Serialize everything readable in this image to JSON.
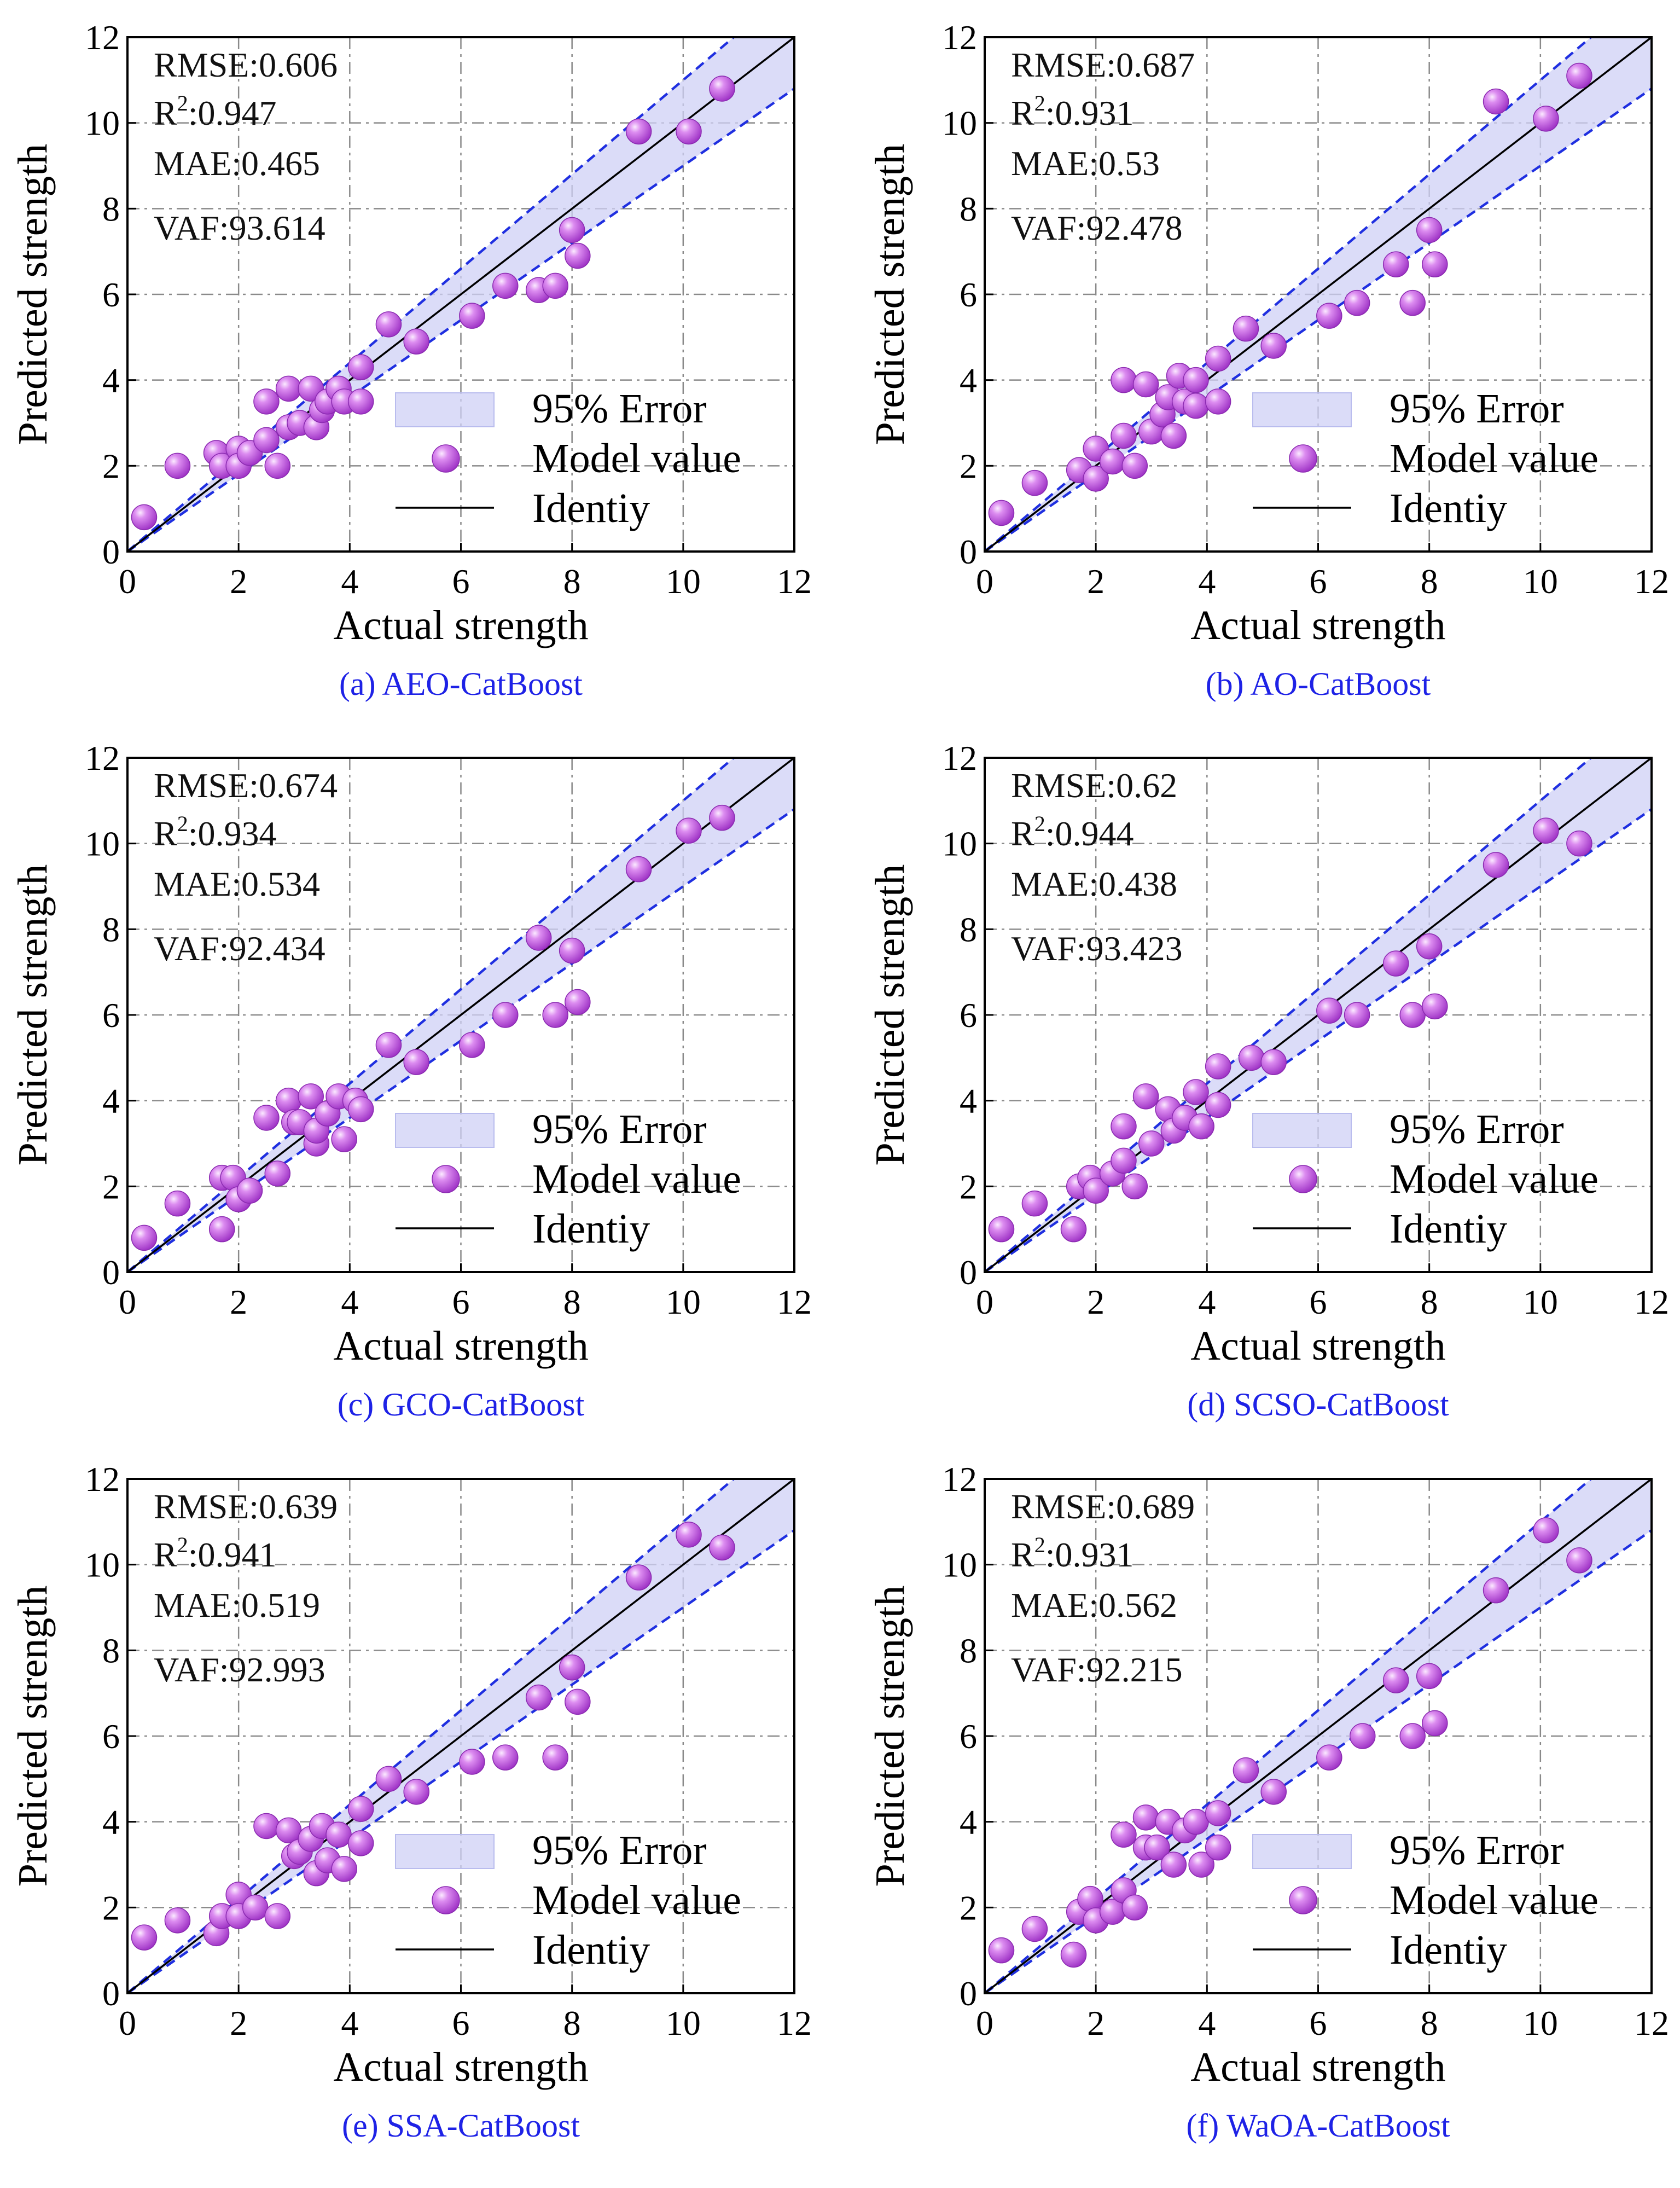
{
  "legend": {
    "error_band": "95% Error",
    "model": "Model value",
    "identity": "Identiy"
  },
  "colors": {
    "band": "#cfd0f5",
    "band_line": "#1f2fe0",
    "identity": "#000000",
    "point": "#b33ad6",
    "point_highlight": "#f2d6fb",
    "caption": "#1e22e6"
  },
  "chart_data": [
    {
      "type": "scatter",
      "caption": "(a) AEO-CatBoost",
      "xlabel": "Actual strength",
      "ylabel": "Predicted strength",
      "xlim": [
        0,
        12
      ],
      "ylim": [
        0,
        12
      ],
      "xticks": [
        "0",
        "2",
        "4",
        "6",
        "8",
        "10",
        "12"
      ],
      "yticks": [
        "0",
        "2",
        "4",
        "6",
        "8",
        "10",
        "12"
      ],
      "metrics": {
        "rmse": "RMSE:0.606",
        "r2_label": "R",
        "r2_exp": "2",
        "r2_value": ":0.947",
        "mae": "MAE:0.465",
        "vaf": "VAF:93.614"
      },
      "band_slopes": [
        0.9,
        1.1
      ],
      "points": [
        [
          0.3,
          0.8
        ],
        [
          0.9,
          2.0
        ],
        [
          1.6,
          2.3
        ],
        [
          1.7,
          2.0
        ],
        [
          2.0,
          2.4
        ],
        [
          2.0,
          2.0
        ],
        [
          2.2,
          2.3
        ],
        [
          2.5,
          2.6
        ],
        [
          2.5,
          3.5
        ],
        [
          2.7,
          2.0
        ],
        [
          2.9,
          3.8
        ],
        [
          2.9,
          2.9
        ],
        [
          3.1,
          3.0
        ],
        [
          3.3,
          3.8
        ],
        [
          3.4,
          2.9
        ],
        [
          3.5,
          3.3
        ],
        [
          3.6,
          3.5
        ],
        [
          3.8,
          3.8
        ],
        [
          3.9,
          3.5
        ],
        [
          4.2,
          4.3
        ],
        [
          4.2,
          3.5
        ],
        [
          4.7,
          5.3
        ],
        [
          5.2,
          4.9
        ],
        [
          6.2,
          5.5
        ],
        [
          6.8,
          6.2
        ],
        [
          7.4,
          6.1
        ],
        [
          7.7,
          6.2
        ],
        [
          8.0,
          7.5
        ],
        [
          8.1,
          6.9
        ],
        [
          9.2,
          9.8
        ],
        [
          10.1,
          9.8
        ],
        [
          10.7,
          10.8
        ]
      ]
    },
    {
      "type": "scatter",
      "caption": "(b) AO-CatBoost",
      "xlabel": "Actual strength",
      "ylabel": "Predicted strength",
      "xlim": [
        0,
        12
      ],
      "ylim": [
        0,
        12
      ],
      "xticks": [
        "0",
        "2",
        "4",
        "6",
        "8",
        "10",
        "12"
      ],
      "yticks": [
        "0",
        "2",
        "4",
        "6",
        "8",
        "10",
        "12"
      ],
      "metrics": {
        "rmse": "RMSE:0.687",
        "r2_label": "R",
        "r2_exp": "2",
        "r2_value": ":0.931",
        "mae": "MAE:0.53",
        "vaf": "VAF:92.478"
      },
      "band_slopes": [
        0.9,
        1.1
      ],
      "points": [
        [
          0.3,
          0.9
        ],
        [
          0.9,
          1.6
        ],
        [
          1.7,
          1.9
        ],
        [
          2.0,
          2.4
        ],
        [
          2.0,
          1.7
        ],
        [
          2.3,
          2.1
        ],
        [
          2.5,
          4.0
        ],
        [
          2.5,
          2.7
        ],
        [
          2.7,
          2.0
        ],
        [
          2.9,
          3.9
        ],
        [
          3.0,
          2.8
        ],
        [
          3.2,
          3.2
        ],
        [
          3.3,
          3.6
        ],
        [
          3.4,
          2.7
        ],
        [
          3.5,
          4.1
        ],
        [
          3.6,
          3.5
        ],
        [
          3.8,
          4.0
        ],
        [
          3.8,
          3.4
        ],
        [
          4.2,
          4.5
        ],
        [
          4.2,
          3.5
        ],
        [
          4.7,
          5.2
        ],
        [
          5.2,
          4.8
        ],
        [
          6.2,
          5.5
        ],
        [
          6.7,
          5.8
        ],
        [
          7.4,
          6.7
        ],
        [
          7.7,
          5.8
        ],
        [
          8.0,
          7.5
        ],
        [
          8.1,
          6.7
        ],
        [
          9.2,
          10.5
        ],
        [
          10.1,
          10.1
        ],
        [
          10.7,
          11.1
        ]
      ]
    },
    {
      "type": "scatter",
      "caption": "(c) GCO-CatBoost",
      "xlabel": "Actual strength",
      "ylabel": "Predicted strength",
      "xlim": [
        0,
        12
      ],
      "ylim": [
        0,
        12
      ],
      "xticks": [
        "0",
        "2",
        "4",
        "6",
        "8",
        "10",
        "12"
      ],
      "yticks": [
        "0",
        "2",
        "4",
        "6",
        "8",
        "10",
        "12"
      ],
      "metrics": {
        "rmse": "RMSE:0.674",
        "r2_label": "R",
        "r2_exp": "2",
        "r2_value": ":0.934",
        "mae": "MAE:0.534",
        "vaf": "VAF:92.434"
      },
      "band_slopes": [
        0.9,
        1.1
      ],
      "points": [
        [
          0.3,
          0.8
        ],
        [
          0.9,
          1.6
        ],
        [
          1.7,
          1.0
        ],
        [
          1.7,
          2.2
        ],
        [
          1.9,
          2.2
        ],
        [
          2.0,
          1.7
        ],
        [
          2.2,
          1.9
        ],
        [
          2.5,
          3.6
        ],
        [
          2.7,
          2.3
        ],
        [
          2.9,
          4.0
        ],
        [
          3.0,
          3.5
        ],
        [
          3.1,
          3.5
        ],
        [
          3.3,
          4.1
        ],
        [
          3.4,
          3.0
        ],
        [
          3.4,
          3.3
        ],
        [
          3.6,
          3.7
        ],
        [
          3.8,
          4.1
        ],
        [
          3.9,
          3.1
        ],
        [
          4.1,
          4.0
        ],
        [
          4.2,
          3.8
        ],
        [
          4.7,
          5.3
        ],
        [
          5.2,
          4.9
        ],
        [
          6.2,
          5.3
        ],
        [
          6.8,
          6.0
        ],
        [
          7.4,
          7.8
        ],
        [
          7.7,
          6.0
        ],
        [
          8.0,
          7.5
        ],
        [
          8.1,
          6.3
        ],
        [
          9.2,
          9.4
        ],
        [
          10.1,
          10.3
        ],
        [
          10.7,
          10.6
        ]
      ]
    },
    {
      "type": "scatter",
      "caption": "(d) SCSO-CatBoost",
      "xlabel": "Actual strength",
      "ylabel": "Predicted strength",
      "xlim": [
        0,
        12
      ],
      "ylim": [
        0,
        12
      ],
      "xticks": [
        "0",
        "2",
        "4",
        "6",
        "8",
        "10",
        "12"
      ],
      "yticks": [
        "0",
        "2",
        "4",
        "6",
        "8",
        "10",
        "12"
      ],
      "metrics": {
        "rmse": "RMSE:0.62",
        "r2_label": "R",
        "r2_exp": "2",
        "r2_value": ":0.944",
        "mae": "MAE:0.438",
        "vaf": "VAF:93.423"
      },
      "band_slopes": [
        0.9,
        1.1
      ],
      "points": [
        [
          0.3,
          1.0
        ],
        [
          0.9,
          1.6
        ],
        [
          1.6,
          1.0
        ],
        [
          1.7,
          2.0
        ],
        [
          1.9,
          2.2
        ],
        [
          2.0,
          1.9
        ],
        [
          2.3,
          2.3
        ],
        [
          2.5,
          3.4
        ],
        [
          2.5,
          2.6
        ],
        [
          2.7,
          2.0
        ],
        [
          2.9,
          4.1
        ],
        [
          3.0,
          3.0
        ],
        [
          3.3,
          3.8
        ],
        [
          3.4,
          3.3
        ],
        [
          3.6,
          3.6
        ],
        [
          3.8,
          4.2
        ],
        [
          3.9,
          3.4
        ],
        [
          4.2,
          4.8
        ],
        [
          4.2,
          3.9
        ],
        [
          4.8,
          5.0
        ],
        [
          5.2,
          4.9
        ],
        [
          6.2,
          6.1
        ],
        [
          6.7,
          6.0
        ],
        [
          7.4,
          7.2
        ],
        [
          7.7,
          6.0
        ],
        [
          8.0,
          7.6
        ],
        [
          8.1,
          6.2
        ],
        [
          9.2,
          9.5
        ],
        [
          10.1,
          10.3
        ],
        [
          10.7,
          10.0
        ]
      ]
    },
    {
      "type": "scatter",
      "caption": "(e) SSA-CatBoost",
      "xlabel": "Actual strength",
      "ylabel": "Predicted strength",
      "xlim": [
        0,
        12
      ],
      "ylim": [
        0,
        12
      ],
      "xticks": [
        "0",
        "2",
        "4",
        "6",
        "8",
        "10",
        "12"
      ],
      "yticks": [
        "0",
        "2",
        "4",
        "6",
        "8",
        "10",
        "12"
      ],
      "metrics": {
        "rmse": "RMSE:0.639",
        "r2_label": "R",
        "r2_exp": "2",
        "r2_value": ":0.941",
        "mae": "MAE:0.519",
        "vaf": "VAF:92.993"
      },
      "band_slopes": [
        0.9,
        1.1
      ],
      "points": [
        [
          0.3,
          1.3
        ],
        [
          0.9,
          1.7
        ],
        [
          1.6,
          1.4
        ],
        [
          1.7,
          1.8
        ],
        [
          2.0,
          2.3
        ],
        [
          2.0,
          1.8
        ],
        [
          2.3,
          2.0
        ],
        [
          2.5,
          3.9
        ],
        [
          2.7,
          1.8
        ],
        [
          2.9,
          3.8
        ],
        [
          3.0,
          3.2
        ],
        [
          3.1,
          3.3
        ],
        [
          3.3,
          3.6
        ],
        [
          3.4,
          2.8
        ],
        [
          3.5,
          3.9
        ],
        [
          3.6,
          3.1
        ],
        [
          3.8,
          3.7
        ],
        [
          3.9,
          2.9
        ],
        [
          4.2,
          4.3
        ],
        [
          4.2,
          3.5
        ],
        [
          4.7,
          5.0
        ],
        [
          5.2,
          4.7
        ],
        [
          6.2,
          5.4
        ],
        [
          6.8,
          5.5
        ],
        [
          7.4,
          6.9
        ],
        [
          7.7,
          5.5
        ],
        [
          8.0,
          7.6
        ],
        [
          8.1,
          6.8
        ],
        [
          9.2,
          9.7
        ],
        [
          10.1,
          10.7
        ],
        [
          10.7,
          10.4
        ]
      ]
    },
    {
      "type": "scatter",
      "caption": "(f) WaOA-CatBoost",
      "xlabel": "Actual strength",
      "ylabel": "Predicted strength",
      "xlim": [
        0,
        12
      ],
      "ylim": [
        0,
        12
      ],
      "xticks": [
        "0",
        "2",
        "4",
        "6",
        "8",
        "10",
        "12"
      ],
      "yticks": [
        "0",
        "2",
        "4",
        "6",
        "8",
        "10",
        "12"
      ],
      "metrics": {
        "rmse": "RMSE:0.689",
        "r2_label": "R",
        "r2_exp": "2",
        "r2_value": ":0.931",
        "mae": "MAE:0.562",
        "vaf": "VAF:92.215"
      },
      "band_slopes": [
        0.9,
        1.1
      ],
      "points": [
        [
          0.3,
          1.0
        ],
        [
          0.9,
          1.5
        ],
        [
          1.6,
          0.9
        ],
        [
          1.7,
          1.9
        ],
        [
          1.9,
          2.2
        ],
        [
          2.0,
          1.7
        ],
        [
          2.3,
          1.9
        ],
        [
          2.5,
          3.7
        ],
        [
          2.5,
          2.4
        ],
        [
          2.7,
          2.0
        ],
        [
          2.9,
          4.1
        ],
        [
          2.9,
          3.4
        ],
        [
          3.1,
          3.4
        ],
        [
          3.3,
          4.0
        ],
        [
          3.4,
          3.0
        ],
        [
          3.6,
          3.8
        ],
        [
          3.8,
          4.0
        ],
        [
          3.9,
          3.0
        ],
        [
          4.2,
          4.2
        ],
        [
          4.2,
          3.4
        ],
        [
          4.7,
          5.2
        ],
        [
          5.2,
          4.7
        ],
        [
          6.2,
          5.5
        ],
        [
          6.8,
          6.0
        ],
        [
          7.4,
          7.3
        ],
        [
          7.7,
          6.0
        ],
        [
          8.0,
          7.4
        ],
        [
          8.1,
          6.3
        ],
        [
          9.2,
          9.4
        ],
        [
          10.1,
          10.8
        ],
        [
          10.7,
          10.1
        ]
      ]
    }
  ]
}
